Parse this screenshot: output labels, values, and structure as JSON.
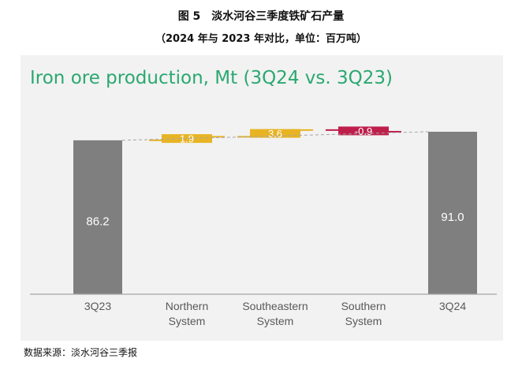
{
  "caption": {
    "title": "图 5　淡水河谷三季度铁矿石产量",
    "subtitle": "（2024 年与 2023 年对比，单位：百万吨）"
  },
  "source": "数据来源：淡水河谷三季报",
  "chart_data": {
    "type": "bar",
    "subtype": "waterfall",
    "title": "Iron ore production, Mt (3Q24 vs. 3Q23)",
    "xlabel": "",
    "ylabel": "",
    "categories": [
      "3Q23",
      "Northern System",
      "Southeastern System",
      "Southern System",
      "3Q24"
    ],
    "category_lines": [
      [
        "3Q23"
      ],
      [
        "Northern",
        "System"
      ],
      [
        "Southeastern",
        "System"
      ],
      [
        "Southern",
        "System"
      ],
      [
        "3Q24"
      ]
    ],
    "values": [
      86.2,
      1.9,
      3.6,
      -0.9,
      91.0
    ],
    "labels": [
      "86.2",
      "1.9",
      "3.6",
      "-0.9",
      "91.0"
    ],
    "kinds": [
      "total",
      "delta",
      "delta",
      "delta",
      "total"
    ],
    "colors": {
      "total": "#7f7f7f",
      "increase": "#e8b424",
      "decrease": "#bf1e4b",
      "connector": "#a6a6a6",
      "axis": "#a6a6a6",
      "title": "#2aa870"
    },
    "grid": false,
    "legend": "none"
  }
}
